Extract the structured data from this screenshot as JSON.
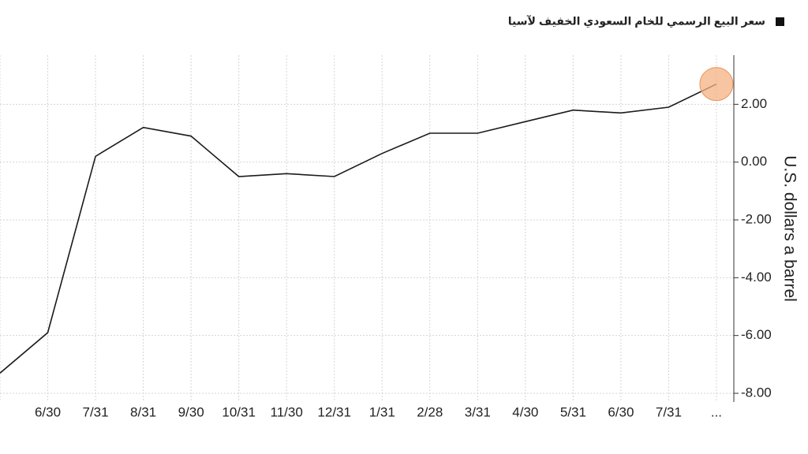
{
  "chart_data": {
    "type": "line",
    "legend_title": "سعر البيع الرسمي للخام السعودي الخفيف لآسيا",
    "y_axis_label": "U.S. dollars a barrel",
    "categories": [
      null,
      "6/30",
      "7/31",
      "8/31",
      "9/30",
      "10/31",
      "11/30",
      "12/31",
      "1/31",
      "2/28",
      "3/31",
      "4/30",
      "5/31",
      "6/30",
      "7/31",
      "..."
    ],
    "series": [
      {
        "name": "سعر البيع الرسمي للخام السعودي الخفيف لآسيا",
        "color": "#1a1a1a",
        "values": [
          -7.3,
          -5.9,
          0.2,
          1.2,
          0.9,
          -0.5,
          -0.4,
          -0.5,
          0.3,
          1.0,
          1.0,
          1.4,
          1.8,
          1.7,
          1.9,
          2.7
        ]
      }
    ],
    "highlight_color": "#f4b183",
    "ylim": [
      -8.3,
      3.7
    ],
    "yticks": [
      {
        "value": 2,
        "label": "2.00"
      },
      {
        "value": 0,
        "label": "0.00"
      },
      {
        "value": -2,
        "label": "-2.00"
      },
      {
        "value": -4,
        "label": "-4.00"
      },
      {
        "value": -6,
        "label": "-6.00"
      },
      {
        "value": -8,
        "label": "-8.00"
      }
    ],
    "grid": true,
    "y_axis_side": "right"
  }
}
